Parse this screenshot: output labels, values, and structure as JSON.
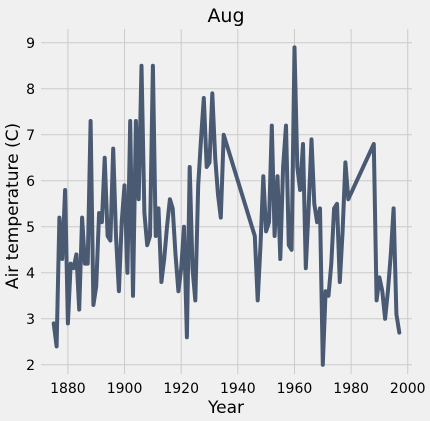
{
  "chart_data": {
    "type": "line",
    "title": "Aug",
    "xlabel": "Year",
    "ylabel": "Air temperature (C)",
    "xlim": [
      1870.5,
      2001.5
    ],
    "ylim": [
      1.8,
      9.3
    ],
    "xticks": [
      1880,
      1900,
      1920,
      1940,
      1960,
      1980,
      2000
    ],
    "yticks": [
      2,
      3,
      4,
      5,
      6,
      7,
      8,
      9
    ],
    "grid": true,
    "legend": "none",
    "color": "#4a5a73",
    "series": [
      {
        "x": [
          1875,
          1876,
          1877,
          1878,
          1879,
          1880,
          1881,
          1882,
          1883,
          1884,
          1885,
          1886,
          1887,
          1888,
          1889,
          1890,
          1891,
          1892,
          1893,
          1894,
          1895,
          1896,
          1897,
          1898,
          1899,
          1900,
          1901,
          1902,
          1903,
          1904,
          1905,
          1906,
          1907,
          1908,
          1909,
          1910,
          1911,
          1912,
          1913,
          1914,
          1915,
          1916,
          1917,
          1918,
          1919,
          1920,
          1921,
          1922,
          1923,
          1924,
          1925,
          1926,
          1927,
          1928,
          1929,
          1930,
          1931,
          1932,
          1933,
          1934,
          1935,
          1946,
          1947,
          1948,
          1949,
          1950,
          1951,
          1952,
          1953,
          1954,
          1955,
          1956,
          1957,
          1958,
          1959,
          1960,
          1961,
          1962,
          1963,
          1964,
          1965,
          1966,
          1967,
          1968,
          1969,
          1970,
          1971,
          1972,
          1973,
          1974,
          1975,
          1976,
          1977,
          1978,
          1979,
          1988,
          1989,
          1990,
          1991,
          1992,
          1993,
          1994,
          1995,
          1996,
          1997
        ],
        "y": [
          2.9,
          2.4,
          5.2,
          4.3,
          5.8,
          2.9,
          4.2,
          4.1,
          4.4,
          3.2,
          5.2,
          4.2,
          4.2,
          7.3,
          3.3,
          3.7,
          5.3,
          5.1,
          6.5,
          4.8,
          4.7,
          6.7,
          4.8,
          3.6,
          5.1,
          5.9,
          4.0,
          7.3,
          3.5,
          7.3,
          5.6,
          8.5,
          5.3,
          4.6,
          4.8,
          8.5,
          4.8,
          5.4,
          3.8,
          4.3,
          5.0,
          5.6,
          5.4,
          4.4,
          3.6,
          4.1,
          5.0,
          2.6,
          6.3,
          4.1,
          3.4,
          5.9,
          6.9,
          7.8,
          6.3,
          6.4,
          7.9,
          6.5,
          5.7,
          5.2,
          7.0,
          4.8,
          3.4,
          4.6,
          6.1,
          4.9,
          5.1,
          7.2,
          4.8,
          6.1,
          4.3,
          6.3,
          7.2,
          4.6,
          4.5,
          8.9,
          6.3,
          5.8,
          6.8,
          4.1,
          5.4,
          6.9,
          5.5,
          5.1,
          5.4,
          2.0,
          3.6,
          3.5,
          4.2,
          5.4,
          5.5,
          3.8,
          4.9,
          6.4,
          5.6,
          6.8,
          3.4,
          3.9,
          3.6,
          3.0,
          3.6,
          4.4,
          5.4,
          3.1,
          2.7
        ]
      }
    ]
  }
}
